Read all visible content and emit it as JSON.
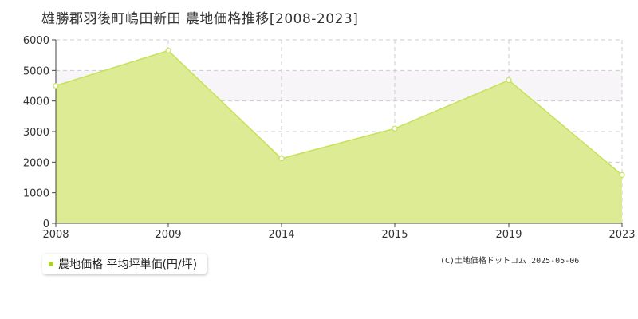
{
  "title": "雄勝郡羽後町嶋田新田 農地価格推移[2008-2023]",
  "legend_label": "農地価格 平均坪単価(円/坪)",
  "credit": "(C)土地価格ドットコム 2025-05-06",
  "colors": {
    "fill": "#dceb94",
    "line": "#c4e25a",
    "band": "#f7f5f7",
    "grid": "#cccccc",
    "axis": "#444444",
    "marker": "#a8d035"
  },
  "chart_data": {
    "type": "area",
    "title": "雄勝郡羽後町嶋田新田 農地価格推移[2008-2023]",
    "xlabel": "",
    "ylabel": "",
    "categories": [
      "2008",
      "2009",
      "2014",
      "2015",
      "2019",
      "2023"
    ],
    "series": [
      {
        "name": "農地価格 平均坪単価(円/坪)",
        "values": [
          4500,
          5650,
          2120,
          3100,
          4680,
          1580
        ]
      }
    ],
    "ylim": [
      0,
      6000
    ],
    "yticks": [
      0,
      1000,
      2000,
      3000,
      4000,
      5000,
      6000
    ],
    "shaded_band": [
      4000,
      5000
    ],
    "grid": true,
    "legend_position": "bottom-left"
  }
}
